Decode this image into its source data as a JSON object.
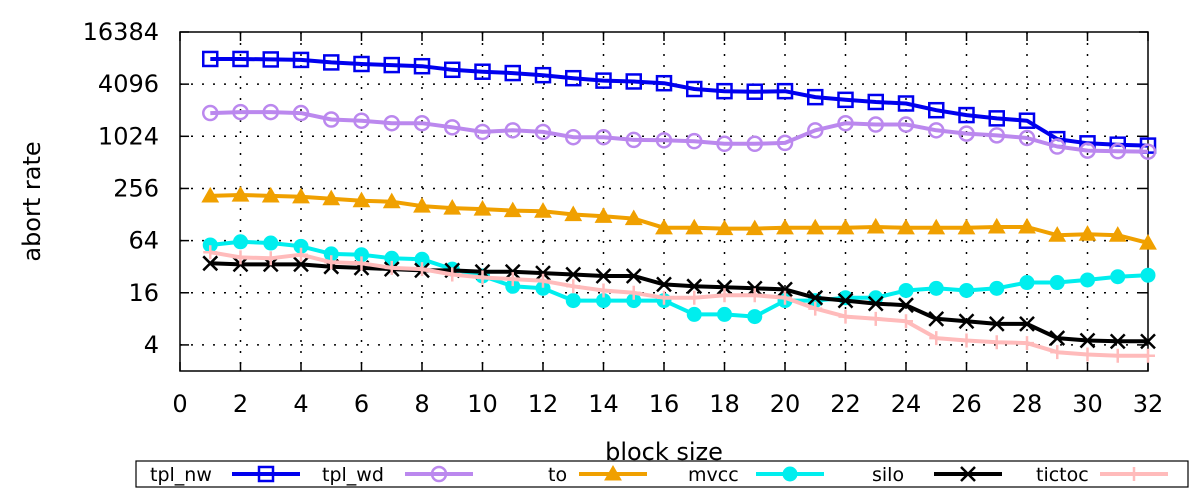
{
  "chart_data": {
    "type": "line",
    "title": "",
    "xlabel": "block size",
    "ylabel": "abort rate",
    "xlim": [
      0,
      32
    ],
    "ylim": [
      2,
      16384
    ],
    "y_scale": "log2",
    "x_ticks": [
      "0",
      "2",
      "4",
      "6",
      "8",
      "10",
      "12",
      "14",
      "16",
      "18",
      "20",
      "22",
      "24",
      "26",
      "28",
      "30",
      "32"
    ],
    "y_ticks": [
      "4",
      "16",
      "64",
      "256",
      "1024",
      "4096",
      "16384"
    ],
    "grid": "dotted",
    "legend_position": "bottom",
    "x": [
      1,
      2,
      3,
      4,
      5,
      6,
      7,
      8,
      9,
      10,
      11,
      12,
      13,
      14,
      15,
      16,
      17,
      18,
      19,
      20,
      21,
      22,
      23,
      24,
      25,
      26,
      27,
      28,
      29,
      30,
      31,
      32
    ],
    "series": [
      {
        "name": "tpl_nw",
        "color": "#0000ee",
        "marker": "square",
        "values": [
          8000,
          8000,
          7900,
          7800,
          7300,
          7000,
          6800,
          6600,
          6000,
          5700,
          5500,
          5200,
          4800,
          4500,
          4400,
          4200,
          3600,
          3400,
          3350,
          3400,
          2900,
          2700,
          2550,
          2450,
          2050,
          1800,
          1650,
          1550,
          950,
          850,
          820,
          800
        ]
      },
      {
        "name": "tpl_wd",
        "color": "#bb88ee",
        "marker": "circle",
        "values": [
          1900,
          1950,
          1950,
          1900,
          1600,
          1550,
          1450,
          1450,
          1300,
          1150,
          1200,
          1150,
          1000,
          1000,
          930,
          920,
          900,
          840,
          840,
          860,
          1200,
          1450,
          1400,
          1400,
          1200,
          1100,
          1050,
          980,
          780,
          700,
          690,
          680
        ]
      },
      {
        "name": "to",
        "color": "#f0a000",
        "marker": "triangle",
        "values": [
          210,
          215,
          210,
          205,
          195,
          185,
          180,
          160,
          152,
          148,
          142,
          140,
          128,
          122,
          115,
          90,
          90,
          88,
          88,
          90,
          90,
          90,
          92,
          90,
          90,
          90,
          92,
          92,
          74,
          76,
          74,
          60
        ]
      },
      {
        "name": "mvcc",
        "color": "#00eeee",
        "marker": "circle-filled",
        "values": [
          57,
          62,
          60,
          55,
          45,
          44,
          40,
          39,
          30,
          25,
          19,
          18,
          13,
          13,
          13,
          13,
          9,
          9,
          8.5,
          13,
          13,
          14,
          14,
          17,
          18,
          17,
          18,
          21,
          21,
          22.5,
          24.5,
          25.5
        ]
      },
      {
        "name": "silo",
        "color": "#000000",
        "marker": "x",
        "values": [
          35,
          34,
          34,
          34,
          32,
          31,
          30,
          29,
          29,
          28,
          28,
          27,
          26,
          25,
          25,
          20,
          19,
          18.5,
          18,
          17.5,
          14,
          13,
          12,
          11.5,
          8,
          7.5,
          7,
          7,
          4.8,
          4.5,
          4.4,
          4.4
        ]
      },
      {
        "name": "tictoc",
        "color": "#ffbbbb",
        "marker": "plus",
        "values": [
          47,
          41,
          40,
          44,
          36,
          35,
          31,
          30,
          26,
          24,
          23,
          22,
          19,
          17,
          16,
          14,
          14,
          15,
          15,
          14,
          10.5,
          8.5,
          8,
          7.5,
          4.8,
          4.5,
          4.3,
          4.2,
          3.3,
          3.1,
          3,
          3
        ]
      }
    ]
  }
}
